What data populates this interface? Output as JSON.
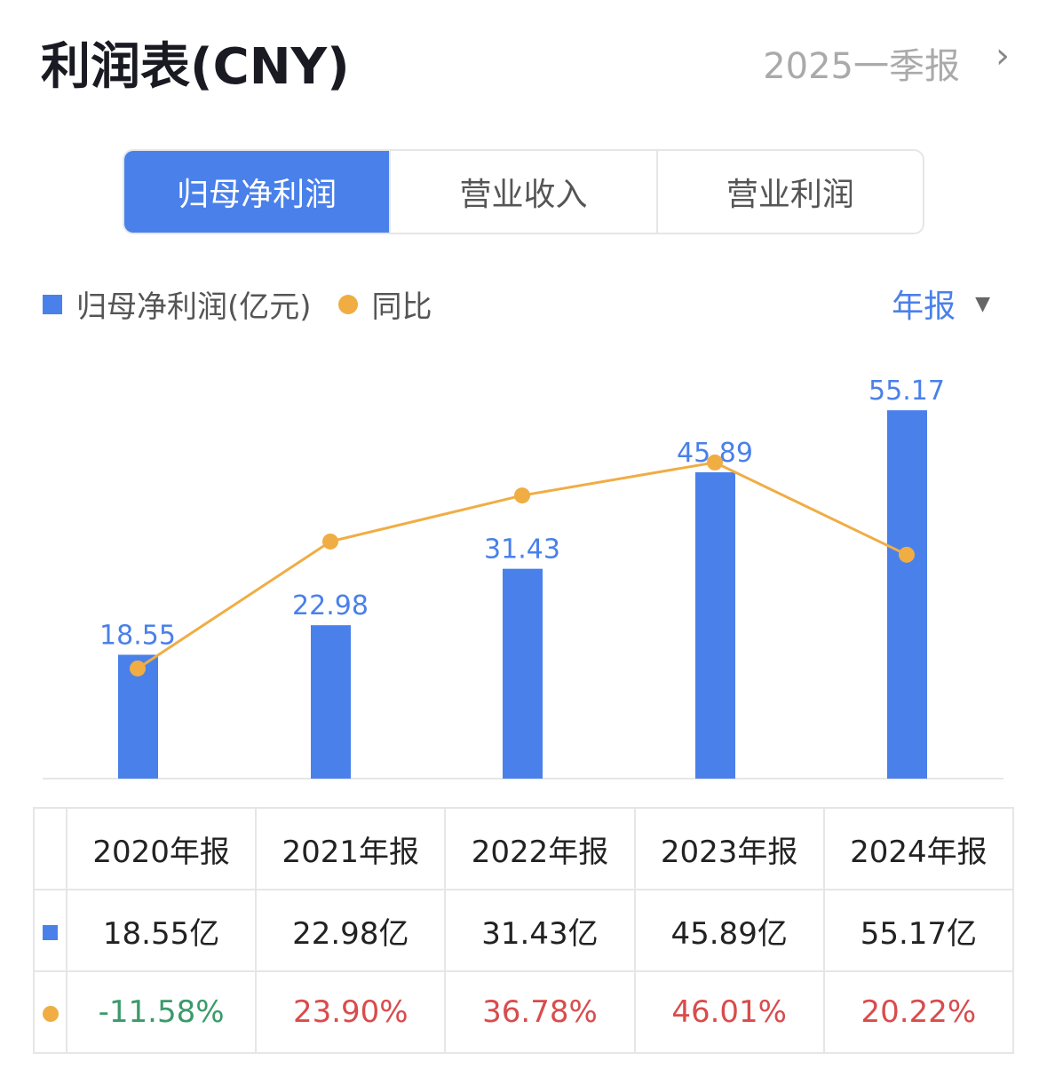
{
  "header": {
    "title": "利润表(CNY)",
    "period": "2025一季报",
    "chevron_icon": "chevron-right-icon"
  },
  "tabs": [
    {
      "label": "归母净利润",
      "active": true
    },
    {
      "label": "营业收入",
      "active": false
    },
    {
      "label": "营业利润",
      "active": false
    }
  ],
  "legend": {
    "bar": "归母净利润(亿元)",
    "line": "同比"
  },
  "frequency": {
    "label": "年报",
    "icon": "triangle-down-icon"
  },
  "colors": {
    "bar": "#4a80ea",
    "line": "#f0ad44",
    "positive": "#d94c4c",
    "negative": "#3a9a6a"
  },
  "chart_data": {
    "type": "bar+line",
    "categories": [
      "2020年报",
      "2021年报",
      "2022年报",
      "2023年报",
      "2024年报"
    ],
    "series": [
      {
        "name": "归母净利润(亿元)",
        "type": "bar",
        "values": [
          18.55,
          22.98,
          31.43,
          45.89,
          55.17
        ],
        "labels": [
          "18.55",
          "22.98",
          "31.43",
          "45.89",
          "55.17"
        ]
      },
      {
        "name": "同比",
        "type": "line",
        "unit": "%",
        "values": [
          -11.58,
          23.9,
          36.78,
          46.01,
          20.22
        ]
      }
    ],
    "grid": false
  },
  "table": {
    "headers": [
      "2020年报",
      "2021年报",
      "2022年报",
      "2023年报",
      "2024年报"
    ],
    "profit": [
      "18.55亿",
      "22.98亿",
      "31.43亿",
      "45.89亿",
      "55.17亿"
    ],
    "yoy": [
      "-11.58%",
      "23.90%",
      "36.78%",
      "46.01%",
      "20.22%"
    ]
  }
}
